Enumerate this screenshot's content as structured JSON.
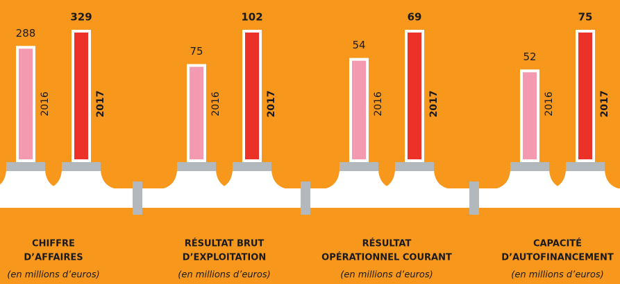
{
  "chart_data": {
    "type": "bar",
    "categories": [
      [
        "CHIFFRE",
        "D’AFFAIRES"
      ],
      [
        "RÉSULTAT BRUT",
        "D’EXPLOITATION"
      ],
      [
        "RÉSULTAT",
        "OPÉRATIONNEL COURANT"
      ],
      [
        "CAPACITÉ",
        "D’AUTOFINANCEMENT"
      ]
    ],
    "category_notes": [
      "(en millions d’euros)",
      "(en millions d’euros)",
      "(en millions d’euros)",
      "(en millions d’euros)"
    ],
    "series": [
      {
        "name": "2016",
        "color": "#f49ab0",
        "values": [
          288,
          75,
          54,
          52
        ]
      },
      {
        "name": "2017",
        "color": "#ec3129",
        "values": [
          329,
          102,
          69,
          75
        ]
      }
    ]
  }
}
